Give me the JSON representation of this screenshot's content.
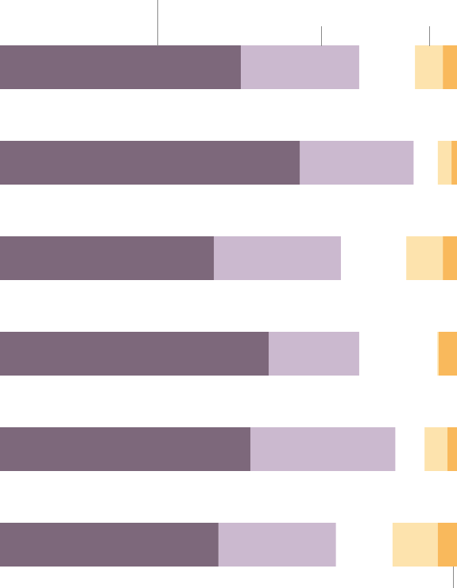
{
  "chart_data": {
    "type": "bar",
    "orientation": "horizontal",
    "stacked": true,
    "xlim": [
      0,
      100
    ],
    "series": [
      {
        "color": "#7d687b",
        "side": "left",
        "values": [
          52.7,
          65.6,
          46.8,
          58.8,
          54.8,
          47.8
        ]
      },
      {
        "color": "#cbb9cf",
        "side": "left",
        "values": [
          25.9,
          24.9,
          27.8,
          19.8,
          31.7,
          25.7
        ]
      },
      {
        "color": "#f9b95c",
        "side": "right",
        "values": [
          3.1,
          1.2,
          3.1,
          4.0,
          2.1,
          4.2
        ]
      },
      {
        "color": "#fde3ad",
        "side": "right",
        "values": [
          6.1,
          3.0,
          8.0,
          0.3,
          5.0,
          9.9
        ]
      }
    ]
  }
}
